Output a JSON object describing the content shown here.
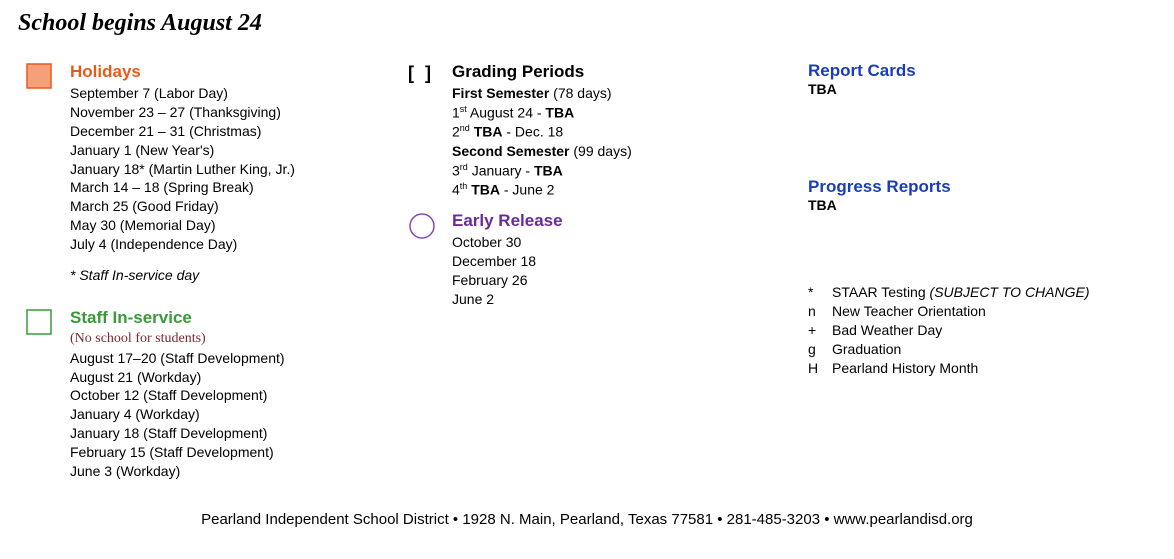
{
  "title": "School begins August 24",
  "holidays": {
    "heading": "Holidays",
    "heading_color": "#e85a1a",
    "box_fill": "#f5a07a",
    "box_stroke": "#e85a1a",
    "items": [
      "September 7 (Labor Day)",
      "November 23 – 27 (Thanksgiving)",
      "December 21 – 31 (Christmas)",
      "January 1  (New Year's)",
      "January 18* (Martin Luther King, Jr.)",
      "March 14 – 18 (Spring Break)",
      "March 25 (Good Friday)",
      "May 30 (Memorial Day)",
      "July 4 (Independence Day)"
    ],
    "note": "* Staff In-service day"
  },
  "inservice": {
    "heading": "Staff In-service",
    "heading_color": "#3a9a3a",
    "sub": "(No school for students)",
    "sub_color": "#7a2a2a",
    "box_stroke": "#3a9a3a",
    "items": [
      "August 17–20 (Staff Development)",
      "August 21 (Workday)",
      "October 12 (Staff Development)",
      "January 4 (Workday)",
      "January 18 (Staff Development)",
      "February 15 (Staff Development)",
      "June 3 (Workday)"
    ]
  },
  "grading": {
    "heading": "Grading Periods",
    "lines": [
      {
        "html": "<b>First Semester</b> (78 days)"
      },
      {
        "html": "1<sup>st</sup> August 24 - <b>TBA</b>"
      },
      {
        "html": "2<sup>nd</sup> <b>TBA</b> - Dec. 18"
      },
      {
        "html": "<b>Second Semester</b> (99 days)"
      },
      {
        "html": "3<sup>rd</sup> January - <b>TBA</b>"
      },
      {
        "html": "4<sup>th</sup>  <b>TBA</b> - June 2"
      }
    ]
  },
  "early": {
    "heading": "Early Release",
    "heading_color": "#6a2a9a",
    "circle_stroke": "#8a4ab5",
    "items": [
      "October 30",
      "December 18",
      "February 26",
      "June 2"
    ]
  },
  "report_cards": {
    "heading": "Report Cards",
    "value": "TBA"
  },
  "progress_reports": {
    "heading": "Progress Reports",
    "value": "TBA"
  },
  "legend": [
    {
      "sym": "*",
      "txt": "STAAR Testing ",
      "paren": "(SUBJECT TO CHANGE)"
    },
    {
      "sym": "n",
      "txt": "New Teacher Orientation"
    },
    {
      "sym": "+",
      "txt": "Bad Weather Day"
    },
    {
      "sym": "g",
      "txt": "Graduation"
    },
    {
      "sym": "H",
      "txt": "Pearland History Month"
    }
  ],
  "footer": "Pearland Independent School District  •  1928 N. Main, Pearland, Texas 77581  • 281-485-3203  • www.pearlandisd.org"
}
